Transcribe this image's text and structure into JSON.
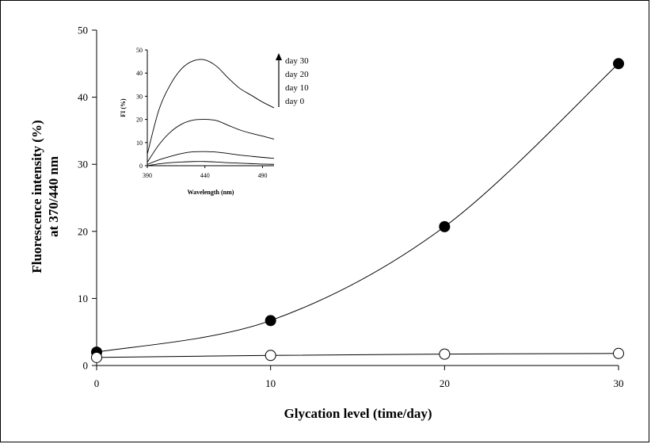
{
  "chart_data": [
    {
      "type": "line",
      "title": "",
      "xlabel": "Glycation level (time/day)",
      "ylabel_line1": "Fluorescence intensity (%)",
      "ylabel_line2": "at 370/440 nm",
      "xlim": [
        0,
        30
      ],
      "ylim": [
        0,
        50
      ],
      "xticks": [
        "0",
        "10",
        "20",
        "30"
      ],
      "yticks": [
        "0",
        "10",
        "20",
        "30",
        "40",
        "50"
      ],
      "grid": false,
      "series": [
        {
          "name": "filled",
          "marker": "filled-circle",
          "x": [
            0,
            10,
            20,
            30
          ],
          "values": [
            2.0,
            6.7,
            20.7,
            45.0
          ]
        },
        {
          "name": "open",
          "marker": "open-circle",
          "x": [
            0,
            10,
            20,
            30
          ],
          "values": [
            1.2,
            1.5,
            1.7,
            1.8
          ]
        }
      ]
    },
    {
      "type": "line",
      "title": "",
      "xlabel": "Wavelength (nm)",
      "ylabel": "FI (%)",
      "xlim": [
        390,
        500
      ],
      "ylim": [
        0,
        50
      ],
      "xticks": [
        "390",
        "440",
        "490"
      ],
      "yticks": [
        "0",
        "10",
        "20",
        "30",
        "40",
        "50"
      ],
      "legend": [
        "day 30",
        "day 20",
        "day 10",
        "day 0"
      ],
      "legend_position": "top-right",
      "series": [
        {
          "name": "day 30",
          "x": [
            390,
            400,
            410,
            420,
            430,
            440,
            450,
            460,
            470,
            480,
            490,
            500
          ],
          "values": [
            5,
            24,
            35,
            42,
            45.3,
            45.7,
            43,
            38,
            33.5,
            30.5,
            27.5,
            25
          ]
        },
        {
          "name": "day 20",
          "x": [
            390,
            400,
            410,
            420,
            430,
            440,
            450,
            460,
            470,
            480,
            490,
            500
          ],
          "values": [
            1.5,
            9,
            14.5,
            18,
            19.7,
            20,
            19.5,
            17.5,
            15.5,
            14,
            12.8,
            11.5
          ]
        },
        {
          "name": "day 10",
          "x": [
            390,
            400,
            410,
            420,
            430,
            440,
            450,
            460,
            470,
            480,
            490,
            500
          ],
          "values": [
            0.5,
            2.5,
            4,
            5.3,
            6,
            6.1,
            5.9,
            5.3,
            4.6,
            4.1,
            3.6,
            3.2
          ]
        },
        {
          "name": "day 0",
          "x": [
            390,
            400,
            410,
            420,
            430,
            440,
            450,
            460,
            470,
            480,
            490,
            500
          ],
          "values": [
            0,
            0.8,
            1.3,
            1.6,
            1.8,
            1.8,
            1.6,
            1.3,
            1.1,
            0.9,
            0.7,
            0.6
          ]
        }
      ]
    }
  ]
}
